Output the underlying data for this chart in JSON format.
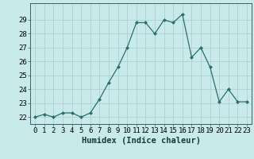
{
  "x": [
    0,
    1,
    2,
    3,
    4,
    5,
    6,
    7,
    8,
    9,
    10,
    11,
    12,
    13,
    14,
    15,
    16,
    17,
    18,
    19,
    20,
    21,
    22,
    23
  ],
  "y": [
    22,
    22.2,
    22,
    22.3,
    22.3,
    22,
    22.3,
    23.3,
    24.5,
    25.6,
    27,
    28.8,
    28.8,
    28,
    29,
    28.8,
    29.4,
    26.3,
    27,
    25.6,
    23.1,
    24,
    23.1,
    23.1
  ],
  "line_color": "#2d6e6e",
  "marker": "D",
  "marker_size": 2.0,
  "bg_color": "#c8eaea",
  "grid_color": "#b0d0d0",
  "xlabel": "Humidex (Indice chaleur)",
  "ylim": [
    21.5,
    30.2
  ],
  "xlim": [
    -0.5,
    23.5
  ],
  "yticks": [
    22,
    23,
    24,
    25,
    26,
    27,
    28,
    29
  ],
  "xtick_labels": [
    "0",
    "1",
    "2",
    "3",
    "4",
    "5",
    "6",
    "7",
    "8",
    "9",
    "10",
    "11",
    "12",
    "13",
    "14",
    "15",
    "16",
    "17",
    "18",
    "19",
    "20",
    "21",
    "22",
    "23"
  ],
  "tick_fontsize": 6.5,
  "xlabel_fontsize": 7.5
}
